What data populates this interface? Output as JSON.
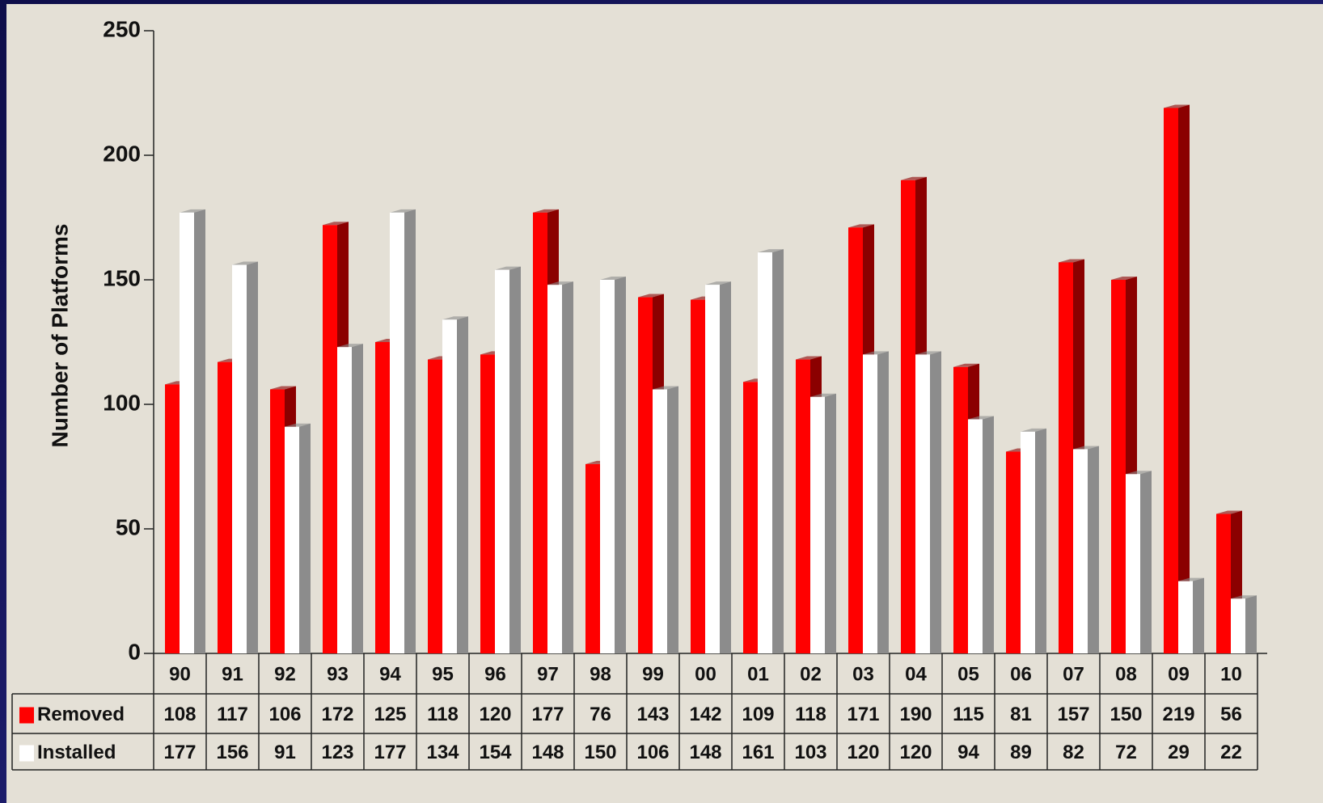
{
  "chart_data": {
    "type": "bar3d",
    "y_label": "Number of Platforms",
    "categories": [
      "90",
      "91",
      "92",
      "93",
      "94",
      "95",
      "96",
      "97",
      "98",
      "99",
      "00",
      "01",
      "02",
      "03",
      "04",
      "05",
      "06",
      "07",
      "08",
      "09",
      "10"
    ],
    "series": [
      {
        "name": "Removed",
        "color": "#ff0000",
        "side_color": "#8b0000",
        "values": [
          108,
          117,
          106,
          172,
          125,
          118,
          120,
          177,
          76,
          143,
          142,
          109,
          118,
          171,
          190,
          115,
          81,
          157,
          150,
          219,
          56
        ]
      },
      {
        "name": "Installed",
        "color": "#ffffff",
        "side_color": "#8c8c8c",
        "values": [
          177,
          156,
          91,
          123,
          177,
          134,
          154,
          148,
          150,
          106,
          148,
          161,
          103,
          120,
          120,
          94,
          89,
          82,
          72,
          29,
          22
        ]
      }
    ],
    "ylim": [
      0,
      250
    ],
    "yticks": [
      0,
      50,
      100,
      150,
      200,
      250
    ],
    "grid": false
  }
}
